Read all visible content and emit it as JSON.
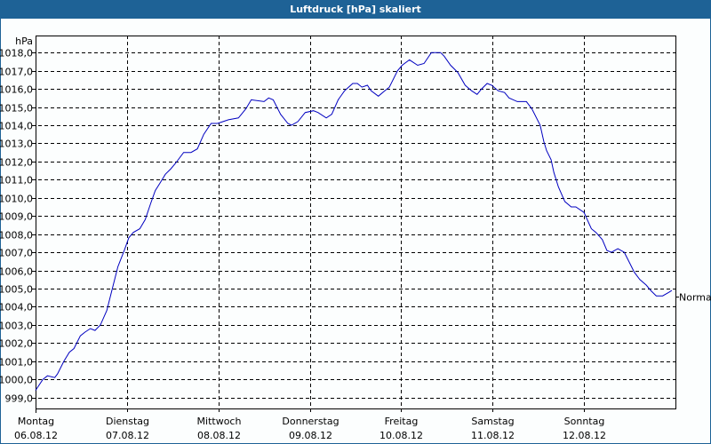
{
  "window": {
    "title": "Luftdruck [hPa] skaliert",
    "title_bg": "#1e6296",
    "border": "#1e6296"
  },
  "chart_data": {
    "type": "line",
    "title": "Luftdruck [hPa] skaliert",
    "xlabel": "",
    "ylabel": "hPa",
    "ylim": [
      998.4,
      1018.94
    ],
    "xlim": [
      0,
      7
    ],
    "grid": true,
    "legend": null,
    "y_ticks": [
      999,
      1000,
      1001,
      1002,
      1003,
      1004,
      1005,
      1006,
      1007,
      1008,
      1009,
      1010,
      1011,
      1012,
      1013,
      1014,
      1015,
      1016,
      1017,
      1018
    ],
    "y_tick_labels": [
      "999,0",
      "1000,0",
      "1001,0",
      "1002,0",
      "1003,0",
      "1004,0",
      "1005,0",
      "1006,0",
      "1007,0",
      "1008,0",
      "1009,0",
      "1010,0",
      "1011,0",
      "1012,0",
      "1013,0",
      "1014,0",
      "1015,0",
      "1016,0",
      "1017,0",
      "1018,0"
    ],
    "x_ticks": [
      0,
      1,
      2,
      3,
      4,
      5,
      6
    ],
    "x_tick_labels": [
      {
        "day": "Montag",
        "date": "06.08.12"
      },
      {
        "day": "Dienstag",
        "date": "07.08.12"
      },
      {
        "day": "Mittwoch",
        "date": "08.08.12"
      },
      {
        "day": "Donnerstag",
        "date": "09.08.12"
      },
      {
        "day": "Freitag",
        "date": "10.08.12"
      },
      {
        "day": "Samstag",
        "date": "11.08.12"
      },
      {
        "day": "Sonntag",
        "date": "12.08.12"
      }
    ],
    "annotations": [
      {
        "label": "Normal",
        "y": 1004.56,
        "side": "right"
      }
    ],
    "series": [
      {
        "name": "Luftdruck",
        "color": "#0000c0",
        "points": [
          [
            0.0,
            999.4
          ],
          [
            0.08,
            1000.0
          ],
          [
            0.13,
            1000.2
          ],
          [
            0.21,
            1000.1
          ],
          [
            0.24,
            1000.3
          ],
          [
            0.31,
            1001.0
          ],
          [
            0.37,
            1001.5
          ],
          [
            0.42,
            1001.7
          ],
          [
            0.49,
            1002.4
          ],
          [
            0.54,
            1002.6
          ],
          [
            0.6,
            1002.8
          ],
          [
            0.65,
            1002.7
          ],
          [
            0.71,
            1003.0
          ],
          [
            0.78,
            1003.8
          ],
          [
            0.84,
            1005.0
          ],
          [
            0.9,
            1006.2
          ],
          [
            0.97,
            1007.1
          ],
          [
            1.02,
            1007.8
          ],
          [
            1.07,
            1008.1
          ],
          [
            1.14,
            1008.3
          ],
          [
            1.2,
            1008.8
          ],
          [
            1.26,
            1009.7
          ],
          [
            1.31,
            1010.4
          ],
          [
            1.36,
            1010.8
          ],
          [
            1.42,
            1011.3
          ],
          [
            1.48,
            1011.6
          ],
          [
            1.53,
            1011.9
          ],
          [
            1.62,
            1012.5
          ],
          [
            1.7,
            1012.5
          ],
          [
            1.77,
            1012.7
          ],
          [
            1.84,
            1013.5
          ],
          [
            1.92,
            1014.1
          ],
          [
            1.99,
            1014.1
          ],
          [
            2.11,
            1014.3
          ],
          [
            2.22,
            1014.4
          ],
          [
            2.3,
            1014.9
          ],
          [
            2.36,
            1015.4
          ],
          [
            2.5,
            1015.3
          ],
          [
            2.55,
            1015.5
          ],
          [
            2.6,
            1015.4
          ],
          [
            2.68,
            1014.6
          ],
          [
            2.76,
            1014.1
          ],
          [
            2.8,
            1014.0
          ],
          [
            2.87,
            1014.2
          ],
          [
            2.95,
            1014.7
          ],
          [
            3.04,
            1014.8
          ],
          [
            3.09,
            1014.7
          ],
          [
            3.18,
            1014.4
          ],
          [
            3.24,
            1014.6
          ],
          [
            3.31,
            1015.4
          ],
          [
            3.38,
            1015.9
          ],
          [
            3.47,
            1016.3
          ],
          [
            3.52,
            1016.3
          ],
          [
            3.57,
            1016.1
          ],
          [
            3.63,
            1016.2
          ],
          [
            3.67,
            1015.9
          ],
          [
            3.75,
            1015.6
          ],
          [
            3.82,
            1015.9
          ],
          [
            3.87,
            1016.1
          ],
          [
            3.96,
            1017.0
          ],
          [
            4.01,
            1017.3
          ],
          [
            4.09,
            1017.6
          ],
          [
            4.18,
            1017.3
          ],
          [
            4.25,
            1017.4
          ],
          [
            4.33,
            1018.0
          ],
          [
            4.43,
            1018.0
          ],
          [
            4.47,
            1017.8
          ],
          [
            4.54,
            1017.3
          ],
          [
            4.62,
            1016.9
          ],
          [
            4.7,
            1016.2
          ],
          [
            4.77,
            1015.9
          ],
          [
            4.83,
            1015.7
          ],
          [
            4.88,
            1016.0
          ],
          [
            4.94,
            1016.3
          ],
          [
            4.99,
            1016.2
          ],
          [
            5.06,
            1015.9
          ],
          [
            5.13,
            1015.8
          ],
          [
            5.18,
            1015.5
          ],
          [
            5.27,
            1015.3
          ],
          [
            5.37,
            1015.3
          ],
          [
            5.43,
            1014.9
          ],
          [
            5.52,
            1014.0
          ],
          [
            5.56,
            1013.1
          ],
          [
            5.59,
            1012.6
          ],
          [
            5.64,
            1012.1
          ],
          [
            5.67,
            1011.4
          ],
          [
            5.72,
            1010.6
          ],
          [
            5.79,
            1009.8
          ],
          [
            5.86,
            1009.5
          ],
          [
            5.91,
            1009.5
          ],
          [
            6.0,
            1009.2
          ],
          [
            6.08,
            1008.3
          ],
          [
            6.13,
            1008.1
          ],
          [
            6.2,
            1007.7
          ],
          [
            6.25,
            1007.1
          ],
          [
            6.3,
            1007.0
          ],
          [
            6.37,
            1007.2
          ],
          [
            6.44,
            1007.0
          ],
          [
            6.5,
            1006.4
          ],
          [
            6.55,
            1005.9
          ],
          [
            6.61,
            1005.5
          ],
          [
            6.68,
            1005.2
          ],
          [
            6.73,
            1004.9
          ],
          [
            6.79,
            1004.6
          ],
          [
            6.86,
            1004.6
          ],
          [
            6.93,
            1004.8
          ],
          [
            6.96,
            1004.9
          ]
        ]
      }
    ]
  }
}
